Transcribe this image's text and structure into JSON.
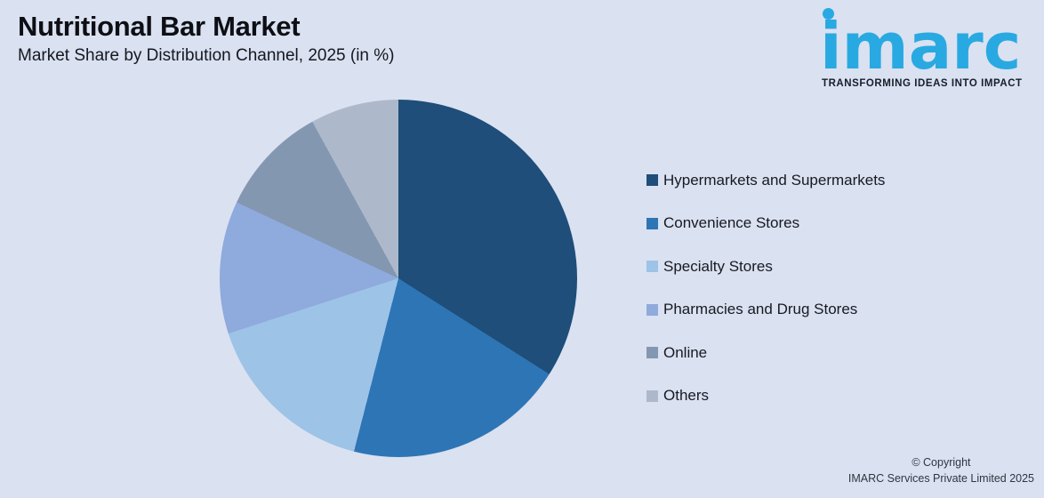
{
  "header": {
    "title": "Nutritional Bar Market",
    "subtitle": "Market Share by Distribution Channel, 2025 (in %)"
  },
  "logo": {
    "wordmark": "imarc",
    "tagline": "TRANSFORMING IDEAS INTO IMPACT",
    "brand_color": "#29a9e1"
  },
  "chart_data": {
    "type": "pie",
    "title": "Nutritional Bar Market",
    "subtitle": "Market Share by Distribution Channel, 2025 (in %)",
    "unit": "%",
    "start_angle_deg": 0,
    "direction": "clockwise",
    "legend_position": "right",
    "series": [
      {
        "name": "Hypermarkets and Supermarkets",
        "value": 34,
        "color": "#1E4E79"
      },
      {
        "name": "Convenience Stores",
        "value": 20,
        "color": "#2E75B6"
      },
      {
        "name": "Specialty Stores",
        "value": 16,
        "color": "#9DC3E6"
      },
      {
        "name": "Pharmacies and Drug Stores",
        "value": 12,
        "color": "#8FAADC"
      },
      {
        "name": "Online",
        "value": 10,
        "color": "#8497B0"
      },
      {
        "name": "Others",
        "value": 8,
        "color": "#ADB9CA"
      }
    ]
  },
  "footer": {
    "copyright_line1": "© Copyright",
    "copyright_line2": "IMARC Services Private Limited 2025"
  },
  "background_color": "#dae1f1"
}
